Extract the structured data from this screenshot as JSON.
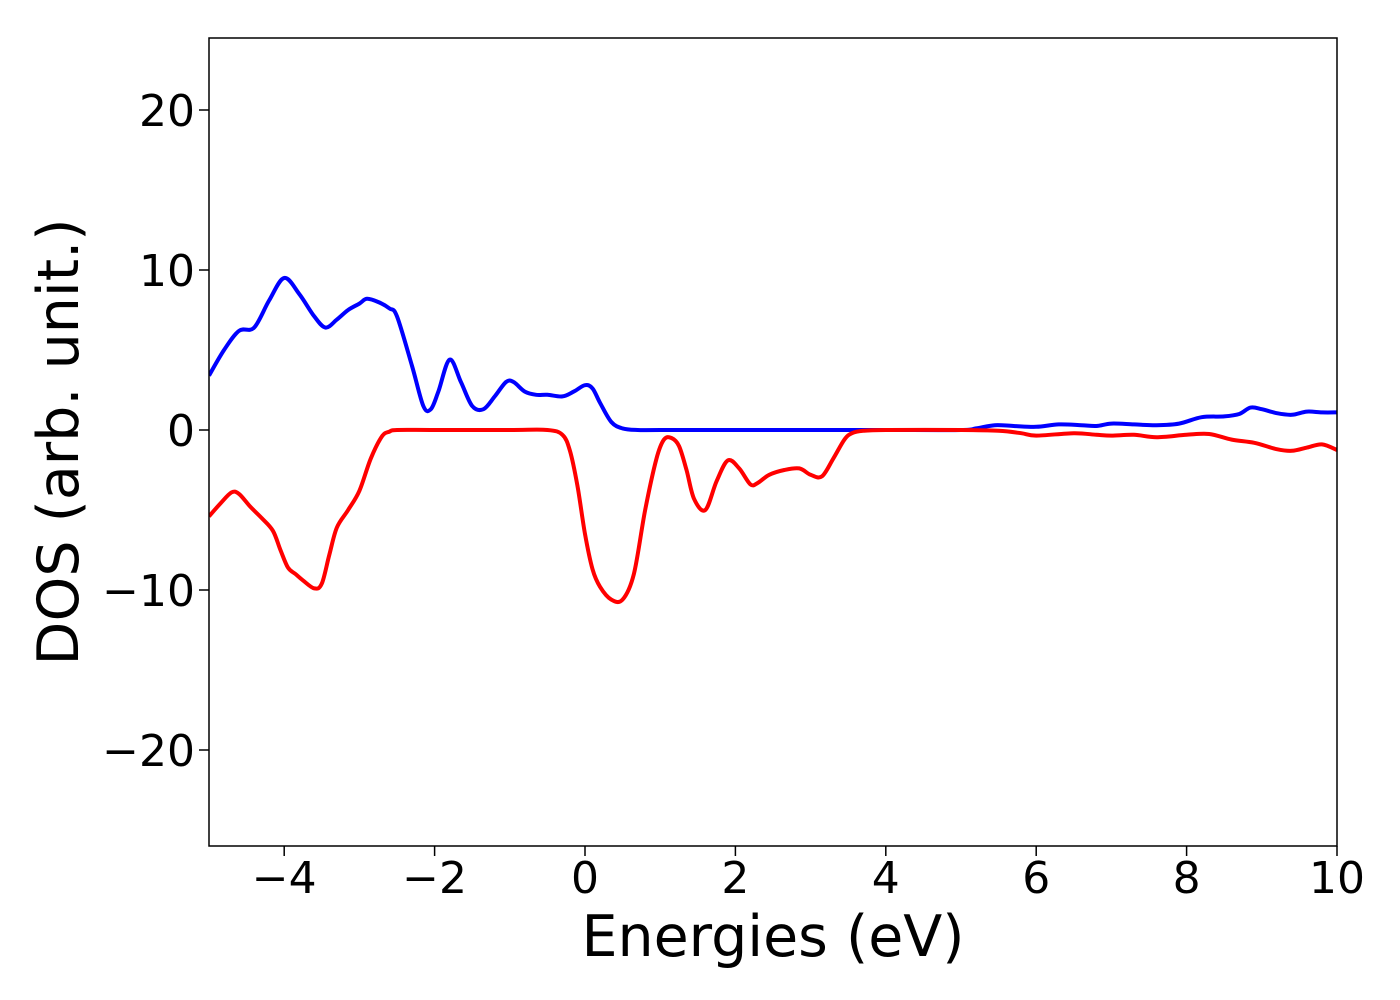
{
  "chart_data": {
    "type": "line",
    "title": "",
    "xlabel": "Energies (eV)",
    "ylabel": "DOS (arb. unit.)",
    "xlim": [
      -5,
      10
    ],
    "ylim": [
      -26,
      24.5
    ],
    "x_ticks": [
      {
        "value": -4,
        "label": "−4"
      },
      {
        "value": -2,
        "label": "−2"
      },
      {
        "value": 0,
        "label": "0"
      },
      {
        "value": 2,
        "label": "2"
      },
      {
        "value": 4,
        "label": "4"
      },
      {
        "value": 6,
        "label": "6"
      },
      {
        "value": 8,
        "label": "8"
      },
      {
        "value": 10,
        "label": "10"
      }
    ],
    "y_ticks": [
      {
        "value": 20,
        "label": "20"
      },
      {
        "value": 10,
        "label": "10"
      },
      {
        "value": 0,
        "label": "0"
      },
      {
        "value": -10,
        "label": "−10"
      },
      {
        "value": -20,
        "label": "−20"
      }
    ],
    "grid": false,
    "legend": "none",
    "series": [
      {
        "color": "#0000ff",
        "x": [
          -5,
          -4.8,
          -4.6,
          -4.4,
          -4.2,
          -4.0,
          -3.8,
          -3.6,
          -3.45,
          -3.3,
          -3.15,
          -3.0,
          -2.9,
          -2.75,
          -2.6,
          -2.5,
          -2.3,
          -2.15,
          -2.05,
          -1.95,
          -1.8,
          -1.65,
          -1.5,
          -1.35,
          -1.2,
          -1.05,
          -0.95,
          -0.8,
          -0.65,
          -0.5,
          -0.3,
          -0.15,
          0.0,
          0.1,
          0.2,
          0.35,
          0.5,
          0.7,
          1.0,
          2.0,
          3.0,
          4.0,
          5.0,
          5.2,
          5.45,
          5.7,
          6.0,
          6.3,
          6.6,
          6.8,
          7.0,
          7.3,
          7.6,
          7.9,
          8.2,
          8.5,
          8.7,
          8.85,
          9.0,
          9.2,
          9.4,
          9.6,
          9.8,
          10.0
        ],
        "y": [
          3.4,
          5.0,
          6.2,
          6.4,
          8.1,
          9.5,
          8.5,
          7.1,
          6.4,
          6.9,
          7.5,
          7.9,
          8.2,
          8.0,
          7.6,
          7.1,
          4.0,
          1.5,
          1.3,
          2.4,
          4.4,
          3.0,
          1.5,
          1.3,
          2.1,
          3.0,
          3.0,
          2.4,
          2.2,
          2.2,
          2.1,
          2.4,
          2.8,
          2.6,
          1.7,
          0.5,
          0.1,
          0.0,
          0.0,
          0.0,
          0.0,
          0.0,
          0.0,
          0.1,
          0.3,
          0.25,
          0.2,
          0.35,
          0.3,
          0.25,
          0.4,
          0.35,
          0.3,
          0.4,
          0.8,
          0.85,
          1.0,
          1.4,
          1.3,
          1.05,
          0.95,
          1.15,
          1.1,
          1.1
        ]
      },
      {
        "color": "#ff0000",
        "x": [
          -5,
          -4.85,
          -4.7,
          -4.6,
          -4.45,
          -4.3,
          -4.15,
          -4.05,
          -3.95,
          -3.85,
          -3.75,
          -3.6,
          -3.5,
          -3.4,
          -3.3,
          -3.15,
          -3.0,
          -2.85,
          -2.7,
          -2.6,
          -2.5,
          -2.0,
          -1.0,
          -0.5,
          -0.3,
          -0.2,
          -0.1,
          0.0,
          0.1,
          0.2,
          0.35,
          0.5,
          0.65,
          0.8,
          0.95,
          1.05,
          1.15,
          1.25,
          1.35,
          1.45,
          1.6,
          1.75,
          1.9,
          2.05,
          2.2,
          2.3,
          2.45,
          2.65,
          2.85,
          3.0,
          3.15,
          3.3,
          3.45,
          3.55,
          3.7,
          4.0,
          5.0,
          5.5,
          5.8,
          6.0,
          6.5,
          6.8,
          7.0,
          7.3,
          7.6,
          8.0,
          8.3,
          8.6,
          8.9,
          9.2,
          9.4,
          9.6,
          9.8,
          10.0
        ],
        "y": [
          -5.4,
          -4.6,
          -3.9,
          -4.0,
          -4.8,
          -5.5,
          -6.3,
          -7.5,
          -8.6,
          -9.0,
          -9.4,
          -9.9,
          -9.6,
          -7.8,
          -6.1,
          -5.0,
          -3.8,
          -1.8,
          -0.4,
          -0.1,
          0.0,
          0.0,
          0.0,
          0.0,
          -0.3,
          -1.3,
          -3.5,
          -6.5,
          -8.7,
          -9.8,
          -10.6,
          -10.6,
          -9.0,
          -5.0,
          -1.8,
          -0.6,
          -0.5,
          -1.0,
          -2.5,
          -4.3,
          -5.0,
          -3.2,
          -1.9,
          -2.4,
          -3.4,
          -3.3,
          -2.8,
          -2.5,
          -2.4,
          -2.8,
          -2.9,
          -1.8,
          -0.6,
          -0.2,
          -0.05,
          0.0,
          0.0,
          -0.05,
          -0.2,
          -0.35,
          -0.2,
          -0.3,
          -0.35,
          -0.3,
          -0.45,
          -0.3,
          -0.25,
          -0.6,
          -0.8,
          -1.2,
          -1.3,
          -1.1,
          -0.9,
          -1.25
        ]
      }
    ]
  }
}
